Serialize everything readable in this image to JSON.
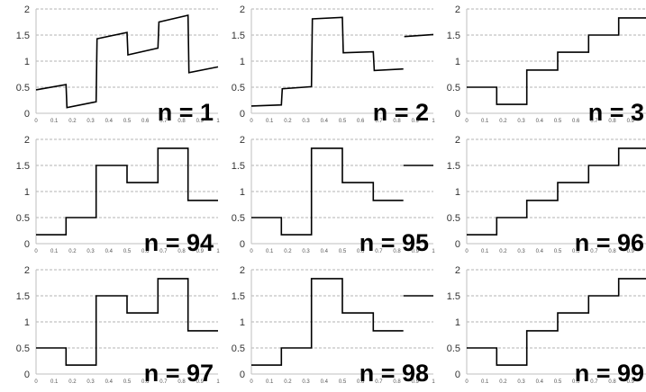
{
  "colors": {
    "line": "#000000",
    "gridline": "#9a9a9a",
    "axis": "#bfbfbf",
    "background": "#ffffff"
  },
  "chart_data": [
    {
      "type": "line",
      "label": "n = 1",
      "ylim": [
        0,
        2
      ],
      "xlim": [
        0,
        1
      ],
      "yticks": [
        "0",
        "0.5",
        "1",
        "1.5",
        "2"
      ],
      "xticks": [
        "0",
        "0.1",
        "0.2",
        "0.3",
        "0.4",
        "0.5",
        "0.6",
        "0.7",
        "0.8",
        "0.9",
        "1"
      ],
      "grid": "horizontal dashed",
      "points": [
        [
          0,
          0.45
        ],
        [
          0.165,
          0.55
        ],
        [
          0.17,
          0.11
        ],
        [
          0.33,
          0.22
        ],
        [
          0.335,
          1.43
        ],
        [
          0.5,
          1.55
        ],
        [
          0.505,
          1.12
        ],
        [
          0.67,
          1.25
        ],
        [
          0.675,
          1.75
        ],
        [
          0.835,
          1.88
        ],
        [
          0.84,
          0.78
        ],
        [
          1.0,
          0.89
        ]
      ]
    },
    {
      "type": "line",
      "label": "n = 2",
      "ylim": [
        0,
        2
      ],
      "xlim": [
        0,
        1
      ],
      "yticks": [
        "0",
        "0.5",
        "1",
        "1.5",
        "2"
      ],
      "xticks": [
        "0",
        "0.1",
        "0.2",
        "0.3",
        "0.4",
        "0.5",
        "0.6",
        "0.7",
        "0.8",
        "0.9",
        "1"
      ],
      "grid": "horizontal dashed",
      "points": [
        [
          0,
          0.14
        ],
        [
          0.165,
          0.16
        ],
        [
          0.17,
          0.47
        ],
        [
          0.33,
          0.51
        ],
        [
          0.335,
          1.81
        ],
        [
          0.5,
          1.84
        ],
        [
          0.505,
          1.16
        ],
        [
          0.67,
          1.18
        ],
        [
          0.675,
          0.82
        ],
        [
          0.835,
          0.85
        ],
        null,
        [
          0.84,
          1.47
        ],
        [
          1.0,
          1.51
        ]
      ]
    },
    {
      "type": "line",
      "label": "n = 3",
      "ylim": [
        0,
        2
      ],
      "xlim": [
        0,
        1
      ],
      "yticks": [
        "0",
        "0.5",
        "1",
        "1.5",
        "2"
      ],
      "xticks": [
        "0",
        "0.1",
        "0.2",
        "0.3",
        "0.4",
        "0.5",
        "0.6",
        "0.7",
        "0.8",
        "0.9",
        "1"
      ],
      "grid": "horizontal dashed",
      "points": [
        [
          0,
          0.5
        ],
        [
          0.165,
          0.5
        ],
        [
          0.165,
          0.17
        ],
        [
          0.33,
          0.17
        ],
        [
          0.33,
          0.83
        ],
        [
          0.5,
          0.83
        ],
        [
          0.5,
          1.17
        ],
        [
          0.67,
          1.17
        ],
        [
          0.67,
          1.5
        ],
        [
          0.835,
          1.5
        ],
        [
          0.835,
          1.83
        ],
        [
          1.0,
          1.83
        ]
      ]
    },
    {
      "type": "line",
      "label": "n = 94",
      "ylim": [
        0,
        2
      ],
      "xlim": [
        0,
        1
      ],
      "yticks": [
        "0",
        "0.5",
        "1",
        "1.5",
        "2"
      ],
      "xticks": [
        "0",
        "0.1",
        "0.2",
        "0.3",
        "0.4",
        "0.5",
        "0.6",
        "0.7",
        "0.8",
        "0.9",
        "1"
      ],
      "grid": "horizontal dashed",
      "points": [
        [
          0,
          0.17
        ],
        [
          0.165,
          0.17
        ],
        [
          0.165,
          0.5
        ],
        [
          0.33,
          0.5
        ],
        [
          0.33,
          1.5
        ],
        [
          0.5,
          1.5
        ],
        [
          0.5,
          1.17
        ],
        [
          0.67,
          1.17
        ],
        [
          0.67,
          1.83
        ],
        [
          0.835,
          1.83
        ],
        [
          0.835,
          0.83
        ],
        [
          1.0,
          0.83
        ]
      ]
    },
    {
      "type": "line",
      "label": "n = 95",
      "ylim": [
        0,
        2
      ],
      "xlim": [
        0,
        1
      ],
      "yticks": [
        "0",
        "0.5",
        "1",
        "1.5",
        "2"
      ],
      "xticks": [
        "0",
        "0.1",
        "0.2",
        "0.3",
        "0.4",
        "0.5",
        "0.6",
        "0.7",
        "0.8",
        "0.9",
        "1"
      ],
      "grid": "horizontal dashed",
      "points": [
        [
          0,
          0.5
        ],
        [
          0.165,
          0.5
        ],
        [
          0.165,
          0.17
        ],
        [
          0.33,
          0.17
        ],
        [
          0.33,
          1.83
        ],
        [
          0.5,
          1.83
        ],
        [
          0.5,
          1.17
        ],
        [
          0.67,
          1.17
        ],
        [
          0.67,
          0.83
        ],
        [
          0.835,
          0.83
        ],
        null,
        [
          0.835,
          1.5
        ],
        [
          1.0,
          1.5
        ]
      ]
    },
    {
      "type": "line",
      "label": "n = 96",
      "ylim": [
        0,
        2
      ],
      "xlim": [
        0,
        1
      ],
      "yticks": [
        "0",
        "0.5",
        "1",
        "1.5",
        "2"
      ],
      "xticks": [
        "0",
        "0.1",
        "0.2",
        "0.3",
        "0.4",
        "0.5",
        "0.6",
        "0.7",
        "0.8",
        "0.9",
        "1"
      ],
      "grid": "horizontal dashed",
      "points": [
        [
          0,
          0.17
        ],
        [
          0.165,
          0.17
        ],
        [
          0.165,
          0.5
        ],
        [
          0.33,
          0.5
        ],
        [
          0.33,
          0.83
        ],
        [
          0.5,
          0.83
        ],
        [
          0.5,
          1.17
        ],
        [
          0.67,
          1.17
        ],
        [
          0.67,
          1.5
        ],
        [
          0.835,
          1.5
        ],
        [
          0.835,
          1.83
        ],
        [
          1.0,
          1.83
        ]
      ]
    },
    {
      "type": "line",
      "label": "n = 97",
      "ylim": [
        0,
        2
      ],
      "xlim": [
        0,
        1
      ],
      "yticks": [
        "0",
        "0.5",
        "1",
        "1.5",
        "2"
      ],
      "xticks": [
        "0",
        "0.1",
        "0.2",
        "0.3",
        "0.4",
        "0.5",
        "0.6",
        "0.7",
        "0.8",
        "0.9",
        "1"
      ],
      "grid": "horizontal dashed",
      "points": [
        [
          0,
          0.5
        ],
        [
          0.165,
          0.5
        ],
        [
          0.165,
          0.17
        ],
        [
          0.33,
          0.17
        ],
        [
          0.33,
          1.5
        ],
        [
          0.5,
          1.5
        ],
        [
          0.5,
          1.17
        ],
        [
          0.67,
          1.17
        ],
        [
          0.67,
          1.83
        ],
        [
          0.835,
          1.83
        ],
        [
          0.835,
          0.83
        ],
        [
          1.0,
          0.83
        ]
      ]
    },
    {
      "type": "line",
      "label": "n = 98",
      "ylim": [
        0,
        2
      ],
      "xlim": [
        0,
        1
      ],
      "yticks": [
        "0",
        "0.5",
        "1",
        "1.5",
        "2"
      ],
      "xticks": [
        "0",
        "0.1",
        "0.2",
        "0.3",
        "0.4",
        "0.5",
        "0.6",
        "0.7",
        "0.8",
        "0.9",
        "1"
      ],
      "grid": "horizontal dashed",
      "points": [
        [
          0,
          0.17
        ],
        [
          0.165,
          0.17
        ],
        [
          0.165,
          0.5
        ],
        [
          0.33,
          0.5
        ],
        [
          0.33,
          1.83
        ],
        [
          0.5,
          1.83
        ],
        [
          0.5,
          1.17
        ],
        [
          0.67,
          1.17
        ],
        [
          0.67,
          0.83
        ],
        [
          0.835,
          0.83
        ],
        null,
        [
          0.835,
          1.5
        ],
        [
          1.0,
          1.5
        ]
      ]
    },
    {
      "type": "line",
      "label": "n = 99",
      "ylim": [
        0,
        2
      ],
      "xlim": [
        0,
        1
      ],
      "yticks": [
        "0",
        "0.5",
        "1",
        "1.5",
        "2"
      ],
      "xticks": [
        "0",
        "0.1",
        "0.2",
        "0.3",
        "0.4",
        "0.5",
        "0.6",
        "0.7",
        "0.8",
        "0.9",
        "1"
      ],
      "grid": "horizontal dashed",
      "points": [
        [
          0,
          0.5
        ],
        [
          0.165,
          0.5
        ],
        [
          0.165,
          0.17
        ],
        [
          0.33,
          0.17
        ],
        [
          0.33,
          0.83
        ],
        [
          0.5,
          0.83
        ],
        [
          0.5,
          1.17
        ],
        [
          0.67,
          1.17
        ],
        [
          0.67,
          1.5
        ],
        [
          0.835,
          1.5
        ],
        [
          0.835,
          1.83
        ],
        [
          1.0,
          1.83
        ]
      ]
    }
  ]
}
